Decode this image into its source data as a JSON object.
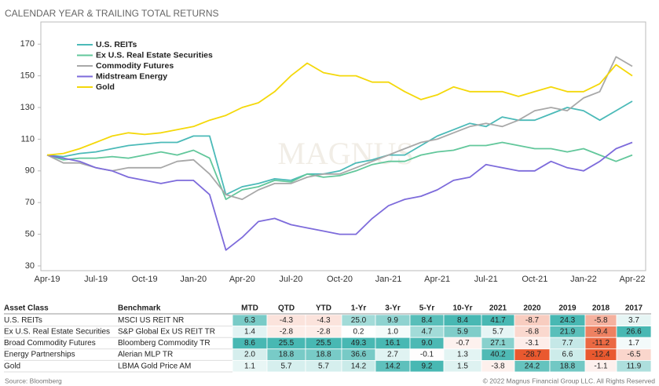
{
  "title": "CALENDAR YEAR & TRAILING TOTAL RETURNS",
  "watermark": "MAGNUS",
  "chart_data": {
    "type": "line",
    "categories": [
      "Apr-19",
      null,
      null,
      "Jul-19",
      null,
      null,
      "Oct-19",
      null,
      null,
      "Jan-20",
      null,
      null,
      "Apr-20",
      null,
      null,
      "Jul-20",
      null,
      null,
      "Oct-20",
      null,
      null,
      "Jan-21",
      null,
      null,
      "Apr-21",
      null,
      null,
      "Jul-21",
      null,
      null,
      "Oct-21",
      null,
      null,
      "Jan-22",
      null,
      null,
      "Apr-22"
    ],
    "series": [
      {
        "name": "U.S. REITs",
        "color": "#4bbab8",
        "values": [
          100,
          99,
          101,
          102,
          104,
          106,
          107,
          108,
          108,
          112,
          112,
          75,
          80,
          82,
          85,
          84,
          88,
          88,
          90,
          95,
          97,
          100,
          100,
          106,
          112,
          116,
          120,
          118,
          124,
          122,
          122,
          126,
          130,
          128,
          122,
          128,
          134
        ]
      },
      {
        "name": "Ex U.S. Real Estate Securities",
        "color": "#62c79b",
        "values": [
          100,
          97,
          98,
          98,
          99,
          98,
          100,
          102,
          100,
          103,
          98,
          72,
          78,
          80,
          84,
          83,
          88,
          86,
          87,
          90,
          94,
          96,
          96,
          100,
          102,
          103,
          106,
          106,
          108,
          106,
          104,
          104,
          102,
          104,
          100,
          96,
          100
        ]
      },
      {
        "name": "Commodity Futures",
        "color": "#a8a8a8",
        "values": [
          100,
          95,
          95,
          92,
          90,
          92,
          92,
          92,
          96,
          97,
          88,
          75,
          72,
          78,
          82,
          82,
          86,
          88,
          88,
          92,
          96,
          100,
          104,
          108,
          110,
          114,
          118,
          120,
          118,
          122,
          128,
          130,
          128,
          136,
          140,
          162,
          156
        ]
      },
      {
        "name": "Midstream Energy",
        "color": "#7d6bdb",
        "values": [
          100,
          98,
          96,
          92,
          90,
          86,
          84,
          82,
          84,
          84,
          75,
          40,
          48,
          58,
          60,
          56,
          54,
          52,
          50,
          50,
          60,
          68,
          72,
          74,
          78,
          84,
          86,
          94,
          92,
          90,
          90,
          96,
          92,
          90,
          96,
          104,
          108
        ]
      },
      {
        "name": "Gold",
        "color": "#f4d80a",
        "values": [
          100,
          101,
          104,
          108,
          112,
          114,
          113,
          114,
          116,
          118,
          122,
          125,
          130,
          133,
          140,
          150,
          158,
          152,
          150,
          150,
          146,
          146,
          140,
          135,
          138,
          143,
          140,
          140,
          140,
          137,
          140,
          143,
          140,
          140,
          145,
          157,
          150
        ]
      }
    ],
    "ylim": [
      27,
      184
    ],
    "yticks": [
      30,
      50,
      70,
      90,
      110,
      130,
      150,
      170
    ],
    "legend": "upper left",
    "grid": false
  },
  "table": {
    "columns": [
      "Asset Class",
      "Benchmark",
      "MTD",
      "QTD",
      "YTD",
      "1-Yr",
      "3-Yr",
      "5-Yr",
      "10-Yr",
      "2021",
      "2020",
      "2019",
      "2018",
      "2017"
    ],
    "rows": [
      [
        "U.S. REITs",
        "MSCI US REIT NR",
        "6.3",
        "-4.3",
        "-4.3",
        "25.0",
        "9.9",
        "8.4",
        "8.4",
        "41.7",
        "-8.7",
        "24.3",
        "-5.8",
        "3.7"
      ],
      [
        "Ex U.S. Real Estate Securities",
        "S&P Global Ex US REIT TR",
        "1.4",
        "-2.8",
        "-2.8",
        "0.2",
        "1.0",
        "4.7",
        "5.9",
        "5.7",
        "-6.8",
        "21.9",
        "-9.4",
        "26.6"
      ],
      [
        "Broad Commodity Futures",
        "Bloomberg Commodity TR",
        "8.6",
        "25.5",
        "25.5",
        "49.3",
        "16.1",
        "9.0",
        "-0.7",
        "27.1",
        "-3.1",
        "7.7",
        "-11.2",
        "1.7"
      ],
      [
        "Energy Partnerships",
        "Alerian MLP TR",
        "2.0",
        "18.8",
        "18.8",
        "36.6",
        "2.7",
        "-0.1",
        "1.3",
        "40.2",
        "-28.7",
        "6.6",
        "-12.4",
        "-6.5"
      ],
      [
        "Gold",
        "LBMA Gold Price AM",
        "1.1",
        "5.7",
        "5.7",
        "14.2",
        "14.2",
        "9.2",
        "1.5",
        "-3.8",
        "24.2",
        "18.8",
        "-1.1",
        "11.9"
      ]
    ]
  },
  "source": "Source: Bloomberg",
  "copyright": "© 2022 Magnus Financial Group LLC. All Rights Reserved"
}
